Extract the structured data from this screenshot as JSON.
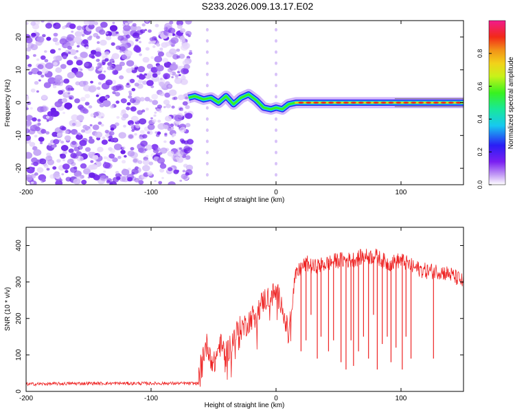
{
  "title": "S233.2026.009.13.17.E02",
  "chart_data": [
    {
      "type": "heatmap",
      "name": "spectrogram",
      "xlabel": "Height of straight line (km)",
      "ylabel": "Frequency (Hz)",
      "xlim": [
        -200,
        150
      ],
      "ylim": [
        -25,
        25
      ],
      "xticks": [
        -200,
        -100,
        0,
        100
      ],
      "xtick_labels": [
        "-200",
        "-100",
        "0",
        "100"
      ],
      "yticks": [
        -20,
        -10,
        0,
        10,
        20
      ],
      "ytick_labels": [
        "-20",
        "-10",
        "0",
        "10",
        "20"
      ],
      "noise_region_x": [
        -200,
        -68
      ],
      "signal_track": {
        "x": [
          -70,
          -65,
          -58,
          -52,
          -46,
          -40,
          -34,
          -28,
          -22,
          -16,
          -10,
          -4,
          0,
          5,
          10,
          16,
          25,
          40,
          60,
          80,
          100,
          120,
          150
        ],
        "y": [
          1.5,
          2.0,
          1.0,
          1.5,
          0.0,
          2.0,
          -0.5,
          1.5,
          2.5,
          0.8,
          -1.5,
          -2.0,
          -1.5,
          -2.0,
          -0.5,
          0.0,
          0.0,
          0.0,
          0.0,
          0.0,
          0.0,
          0.0,
          0.0
        ]
      },
      "colorbar": {
        "label": "Normalized spectral amplitude",
        "range": [
          0,
          1
        ],
        "ticks": [
          0.0,
          0.2,
          0.4,
          0.6,
          0.8
        ],
        "tick_labels": [
          "0.0",
          "0.2",
          "0.4",
          "0.6",
          "0.8"
        ]
      }
    },
    {
      "type": "line",
      "name": "snr",
      "xlabel": "Height of straight line (km)",
      "ylabel": "SNR (10 * v/v)",
      "xlim": [
        -200,
        150
      ],
      "ylim": [
        0,
        450
      ],
      "xticks": [
        -200,
        -100,
        0,
        100
      ],
      "xtick_labels": [
        "-200",
        "-100",
        "0",
        "100"
      ],
      "yticks": [
        0,
        100,
        200,
        300,
        400
      ],
      "ytick_labels": [
        "0",
        "100",
        "200",
        "300",
        "400"
      ],
      "series": [
        {
          "name": "SNR",
          "color": "#ee2222",
          "x": [
            -200,
            -150,
            -100,
            -62,
            -60,
            -55,
            -50,
            -45,
            -40,
            -35,
            -30,
            -25,
            -20,
            -15,
            -10,
            -5,
            0,
            5,
            10,
            15,
            20,
            25,
            30,
            40,
            50,
            60,
            70,
            80,
            90,
            100,
            110,
            120,
            130,
            140,
            150
          ],
          "y": [
            20,
            22,
            22,
            22,
            90,
            130,
            70,
            130,
            100,
            140,
            170,
            180,
            200,
            220,
            250,
            260,
            270,
            240,
            150,
            310,
            340,
            350,
            340,
            350,
            360,
            360,
            370,
            370,
            350,
            360,
            340,
            330,
            330,
            320,
            300
          ]
        }
      ],
      "dropouts": [
        {
          "x": 20,
          "y": 110
        },
        {
          "x": 24,
          "y": 140
        },
        {
          "x": 28,
          "y": 210
        },
        {
          "x": 33,
          "y": 90
        },
        {
          "x": 36,
          "y": 150
        },
        {
          "x": 42,
          "y": 110
        },
        {
          "x": 46,
          "y": 140
        },
        {
          "x": 52,
          "y": 80
        },
        {
          "x": 56,
          "y": 60
        },
        {
          "x": 60,
          "y": 140
        },
        {
          "x": 62,
          "y": 70
        },
        {
          "x": 66,
          "y": 110
        },
        {
          "x": 70,
          "y": 150
        },
        {
          "x": 74,
          "y": 90
        },
        {
          "x": 78,
          "y": 210
        },
        {
          "x": 81,
          "y": 60
        },
        {
          "x": 85,
          "y": 130
        },
        {
          "x": 89,
          "y": 150
        },
        {
          "x": 92,
          "y": 80
        },
        {
          "x": 96,
          "y": 120
        },
        {
          "x": 101,
          "y": 60
        },
        {
          "x": 104,
          "y": 150
        },
        {
          "x": 108,
          "y": 90
        },
        {
          "x": 126,
          "y": 90
        }
      ]
    }
  ]
}
